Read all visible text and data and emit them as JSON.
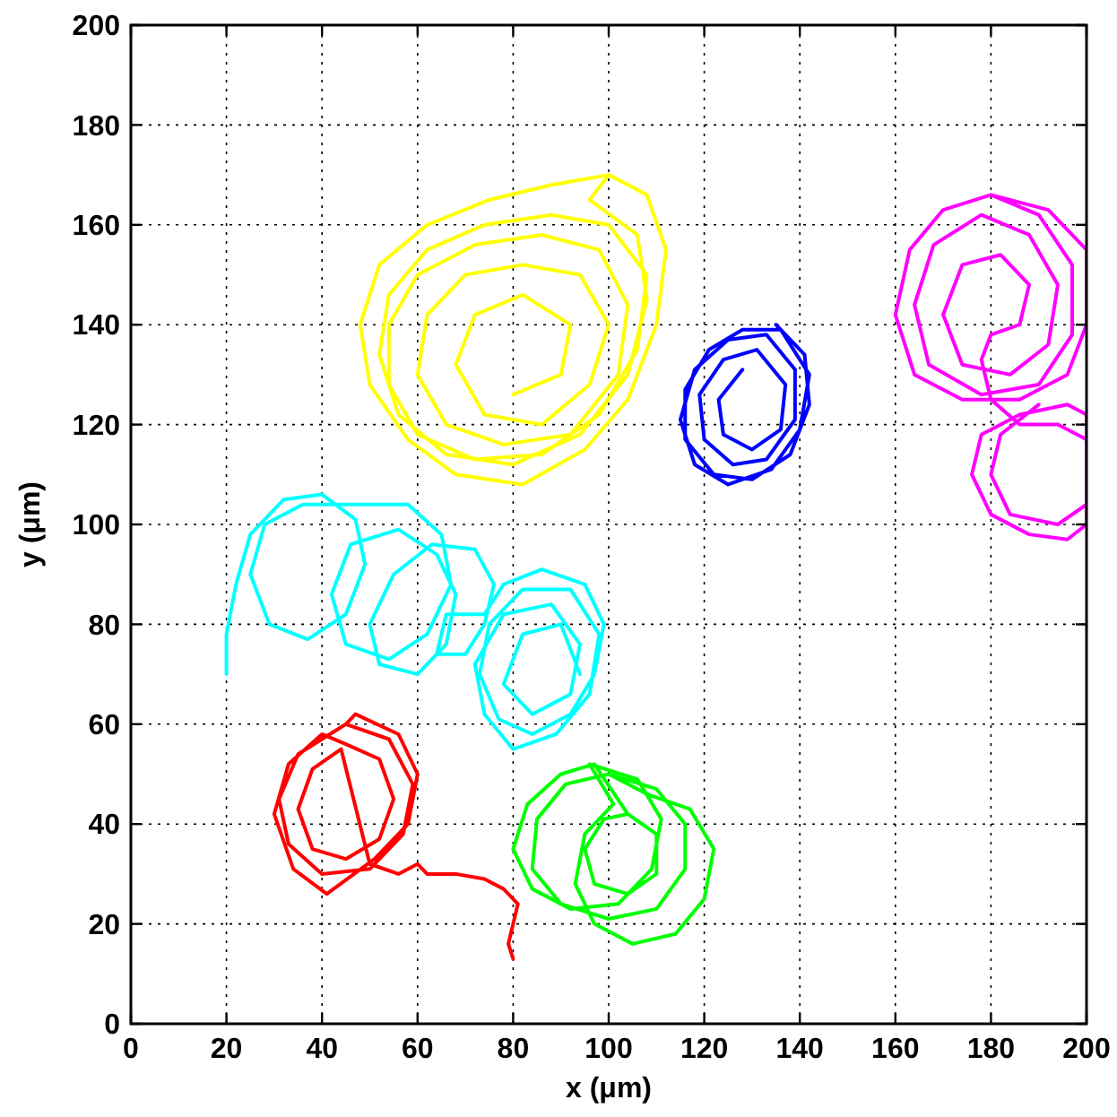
{
  "chart_data": {
    "type": "line",
    "xlabel": "x (μm)",
    "ylabel": "y (μm)",
    "xlim": [
      0,
      200
    ],
    "ylim": [
      0,
      200
    ],
    "xticks": [
      0,
      20,
      40,
      60,
      80,
      100,
      120,
      140,
      160,
      180,
      200
    ],
    "yticks": [
      0,
      20,
      40,
      60,
      80,
      100,
      120,
      140,
      160,
      180,
      200
    ],
    "grid": true,
    "marker": "none",
    "line_style": "solid",
    "series": [
      {
        "color": "#ffff00",
        "x": [
          100,
          108,
          112,
          110,
          104,
          95,
          82,
          68,
          58,
          50,
          48,
          52,
          62,
          75,
          88,
          100,
          96,
          106,
          108,
          104,
          94,
          80,
          66,
          56,
          52,
          54,
          62,
          74,
          88,
          100,
          108,
          106,
          98,
          86,
          72,
          60,
          54,
          54,
          60,
          72,
          86,
          98,
          104,
          102,
          92,
          78,
          66,
          60,
          62,
          70,
          82,
          94,
          100,
          96,
          86,
          74,
          68,
          72,
          82,
          92,
          90,
          80
        ],
        "values": [
          170,
          166,
          155,
          140,
          125,
          115,
          108,
          110,
          117,
          128,
          140,
          152,
          160,
          165,
          168,
          170,
          165,
          158,
          145,
          130,
          118,
          112,
          114,
          122,
          134,
          146,
          155,
          160,
          162,
          160,
          150,
          135,
          122,
          114,
          113,
          118,
          128,
          140,
          150,
          156,
          158,
          155,
          144,
          130,
          118,
          116,
          120,
          130,
          142,
          150,
          152,
          150,
          140,
          128,
          120,
          122,
          132,
          142,
          146,
          140,
          130,
          126
        ]
      },
      {
        "color": "#0000ff",
        "x": [
          135,
          141,
          142,
          138,
          130,
          122,
          116,
          116,
          121,
          128,
          136,
          142,
          140,
          134,
          125,
          118,
          115,
          118,
          125,
          133,
          139,
          139,
          133,
          126,
          120,
          119,
          124,
          131,
          137,
          136,
          130,
          124,
          123,
          128
        ],
        "values": [
          140,
          134,
          124,
          114,
          109,
          110,
          117,
          127,
          135,
          139,
          139,
          130,
          119,
          111,
          108,
          112,
          121,
          131,
          137,
          138,
          131,
          121,
          113,
          112,
          117,
          126,
          133,
          135,
          128,
          119,
          115,
          118,
          125,
          131
        ]
      },
      {
        "color": "#ff00ff",
        "x": [
          180,
          192,
          200,
          200,
          196,
          186,
          174,
          164,
          160,
          163,
          170,
          180,
          190,
          197,
          197,
          190,
          178,
          167,
          164,
          168,
          178,
          188,
          194,
          192,
          184,
          174,
          170,
          174,
          182,
          188,
          186,
          180,
          178,
          180,
          186,
          194,
          200,
          200,
          196,
          188,
          180,
          176,
          178,
          186,
          196,
          200,
          200,
          194,
          184,
          180,
          182,
          190
        ],
        "values": [
          166,
          163,
          155,
          140,
          130,
          125,
          125,
          130,
          142,
          155,
          163,
          166,
          162,
          152,
          138,
          128,
          126,
          132,
          144,
          156,
          162,
          158,
          148,
          136,
          130,
          132,
          142,
          152,
          154,
          148,
          140,
          138,
          133,
          125,
          120,
          120,
          117,
          100,
          97,
          98,
          102,
          110,
          118,
          122,
          124,
          122,
          104,
          100,
          102,
          110,
          118,
          124
        ]
      },
      {
        "color": "#00ffff",
        "x": [
          20,
          20,
          22,
          25,
          32,
          40,
          47,
          49,
          45,
          37,
          29,
          25,
          28,
          36,
          48,
          58,
          65,
          67,
          62,
          54,
          45,
          42,
          46,
          56,
          64,
          68,
          66,
          60,
          52,
          50,
          55,
          63,
          72,
          76,
          74,
          70,
          64,
          66,
          74,
          78,
          86,
          95,
          99,
          97,
          92,
          84,
          77,
          73,
          75,
          82,
          92,
          98,
          96,
          89,
          80,
          74,
          72,
          78,
          88,
          94,
          92,
          84,
          78,
          82,
          90,
          94
        ],
        "values": [
          70,
          78,
          88,
          98,
          105,
          106,
          101,
          92,
          82,
          77,
          80,
          90,
          100,
          104,
          104,
          104,
          98,
          88,
          78,
          73,
          76,
          86,
          96,
          99,
          94,
          86,
          76,
          70,
          72,
          80,
          90,
          96,
          95,
          88,
          80,
          74,
          74,
          82,
          82,
          88,
          91,
          88,
          80,
          70,
          62,
          58,
          61,
          70,
          80,
          87,
          87,
          78,
          66,
          58,
          55,
          62,
          72,
          82,
          84,
          76,
          66,
          62,
          68,
          78,
          80,
          70
        ]
      },
      {
        "color": "#ff0000",
        "x": [
          45,
          54,
          59,
          57,
          50,
          40,
          33,
          31,
          35,
          45,
          47,
          56,
          60,
          58,
          51,
          41,
          34,
          30,
          33,
          40,
          45,
          52,
          55,
          52,
          45,
          38,
          35,
          38,
          44,
          50,
          56,
          60,
          62,
          68,
          74,
          78,
          81,
          80,
          79,
          80
        ],
        "values": [
          60,
          57,
          48,
          38,
          31,
          30,
          36,
          45,
          54,
          60,
          62,
          58,
          50,
          40,
          33,
          26,
          31,
          42,
          52,
          58,
          56,
          53,
          45,
          37,
          33,
          35,
          43,
          51,
          55,
          32,
          30,
          32,
          30,
          30,
          29,
          27,
          24,
          20,
          16,
          13
        ]
      },
      {
        "color": "#00ff00",
        "x": [
          100,
          110,
          116,
          116,
          110,
          100,
          90,
          84,
          85,
          91,
          100,
          108,
          117,
          122,
          120,
          114,
          105,
          97,
          93,
          95,
          101,
          96,
          106,
          111,
          109,
          102,
          92,
          84,
          80,
          83,
          90,
          97,
          104,
          110,
          110,
          104,
          97,
          95,
          99,
          104
        ],
        "values": [
          50,
          47,
          40,
          31,
          23,
          21,
          24,
          31,
          41,
          48,
          50,
          46,
          43,
          35,
          25,
          18,
          16,
          20,
          28,
          38,
          44,
          52,
          49,
          41,
          31,
          24,
          23,
          27,
          35,
          44,
          50,
          52,
          42,
          38,
          30,
          26,
          28,
          35,
          41,
          42
        ]
      }
    ]
  }
}
